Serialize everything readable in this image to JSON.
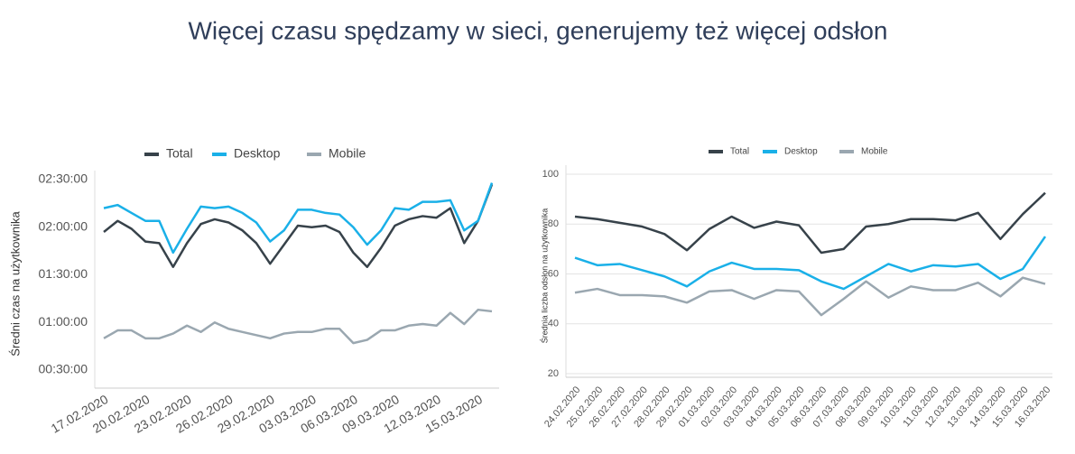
{
  "title": "Więcej czasu spędzamy w sieci, generujemy też więcej odsłon",
  "chart_data": [
    {
      "type": "line",
      "ylabel": "Średni czas na użytkownika",
      "categories": [
        "17.02.2020",
        null,
        null,
        "20.02.2020",
        null,
        null,
        "23.02.2020",
        null,
        null,
        "26.02.2020",
        null,
        null,
        "29.02.2020",
        null,
        null,
        "03.03.2020",
        null,
        null,
        "06.03.2020",
        null,
        null,
        "09.03.2020",
        null,
        null,
        "12.03.2020",
        null,
        null,
        "15.03.2020",
        null
      ],
      "series": [
        {
          "name": "Total",
          "color": "#37424a",
          "values": [
            117,
            124,
            119,
            111,
            110,
            95,
            110,
            122,
            125,
            123,
            118,
            110,
            97,
            109,
            121,
            120,
            121,
            117,
            104,
            95,
            107,
            121,
            125,
            127,
            126,
            132,
            110,
            124,
            147
          ]
        },
        {
          "name": "Desktop",
          "color": "#1ab0e8",
          "values": [
            132,
            134,
            129,
            124,
            124,
            104,
            119,
            133,
            132,
            133,
            129,
            123,
            111,
            118,
            131,
            131,
            129,
            128,
            120,
            109,
            118,
            132,
            131,
            136,
            136,
            137,
            118,
            124,
            148
          ]
        },
        {
          "name": "Mobile",
          "color": "#9aa7b0",
          "values": [
            50,
            55,
            55,
            50,
            50,
            53,
            58,
            54,
            60,
            56,
            54,
            52,
            50,
            53,
            54,
            54,
            56,
            56,
            47,
            49,
            55,
            55,
            58,
            59,
            58,
            66,
            59,
            68,
            67
          ]
        }
      ],
      "ylim": [
        30,
        150
      ],
      "yticks": [
        {
          "value": 30,
          "label": "00:30:00"
        },
        {
          "value": 60,
          "label": "01:00:00"
        },
        {
          "value": 90,
          "label": "01:30:00"
        },
        {
          "value": 120,
          "label": "02:00:00"
        },
        {
          "value": 150,
          "label": "02:30:00"
        }
      ],
      "grid": false
    },
    {
      "type": "line",
      "ylabel": "Średnia liczba odsłon na użytkownika",
      "categories": [
        "24.02.2020",
        "25.02.2020",
        "26.02.2020",
        "27.02.2020",
        "28.02.2020",
        "29.02.2020",
        "01.03.2020",
        "02.03.2020",
        "03.03.2020",
        "04.03.2020",
        "05.03.2020",
        "06.03.2020",
        "07.03.2020",
        "08.03.2020",
        "09.03.2020",
        "10.03.2020",
        "11.03.2020",
        "12.03.2020",
        "13.03.2020",
        "14.03.2020",
        "15.03.2020",
        "16.03.2020"
      ],
      "series": [
        {
          "name": "Total",
          "color": "#37424a",
          "values": [
            83,
            82,
            80.5,
            79,
            76,
            69.5,
            78,
            83,
            78.5,
            81,
            79.5,
            68.5,
            70,
            79,
            80,
            82,
            82,
            81.5,
            84.5,
            74,
            84,
            92.5
          ]
        },
        {
          "name": "Desktop",
          "color": "#1ab0e8",
          "values": [
            66.5,
            63.5,
            64,
            61.5,
            59,
            55,
            61,
            64.5,
            62,
            62,
            61.5,
            57,
            54,
            59,
            64,
            61,
            63.5,
            63,
            64,
            58,
            62,
            75
          ]
        },
        {
          "name": "Mobile",
          "color": "#9aa7b0",
          "values": [
            52.5,
            54,
            51.5,
            51.5,
            51,
            48.5,
            53,
            53.5,
            50,
            53.5,
            53,
            43.5,
            50,
            57,
            50.5,
            55,
            53.5,
            53.5,
            56.5,
            51,
            58.5,
            56
          ]
        }
      ],
      "ylim": [
        20,
        100
      ],
      "yticks": [
        20,
        40,
        60,
        80,
        100
      ],
      "grid": true
    }
  ]
}
